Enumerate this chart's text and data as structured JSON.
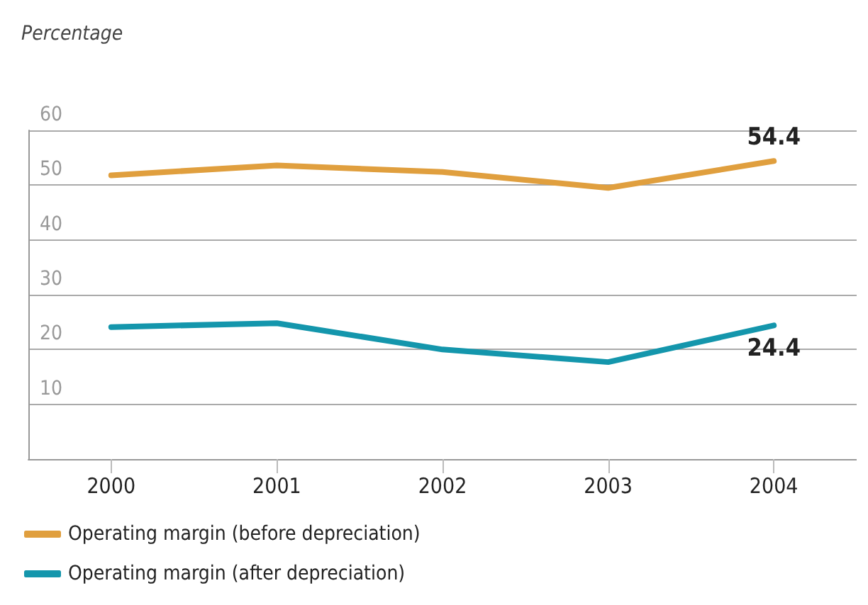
{
  "chart_data": {
    "type": "line",
    "ylabel": "Percentage",
    "categories": [
      "2000",
      "2001",
      "2002",
      "2003",
      "2004"
    ],
    "series": [
      {
        "name": "Operating margin (before depreciation)",
        "color": "#e09f3e",
        "values": [
          51.8,
          53.6,
          52.4,
          49.5,
          54.4
        ],
        "value_labels": [
          null,
          null,
          null,
          null,
          "54.4"
        ]
      },
      {
        "name": "Operating margin (after depreciation)",
        "color": "#1496ac",
        "values": [
          24.1,
          24.8,
          20.0,
          17.7,
          24.4
        ],
        "value_labels": [
          null,
          null,
          null,
          null,
          "24.4"
        ]
      }
    ],
    "ylim": [
      0,
      60
    ],
    "yticks": [
      {
        "value": 0,
        "label": null
      },
      10,
      20,
      30,
      40,
      50,
      60
    ],
    "grid": "y",
    "legend": "bottom",
    "marker": "none",
    "line_style": "solid"
  }
}
